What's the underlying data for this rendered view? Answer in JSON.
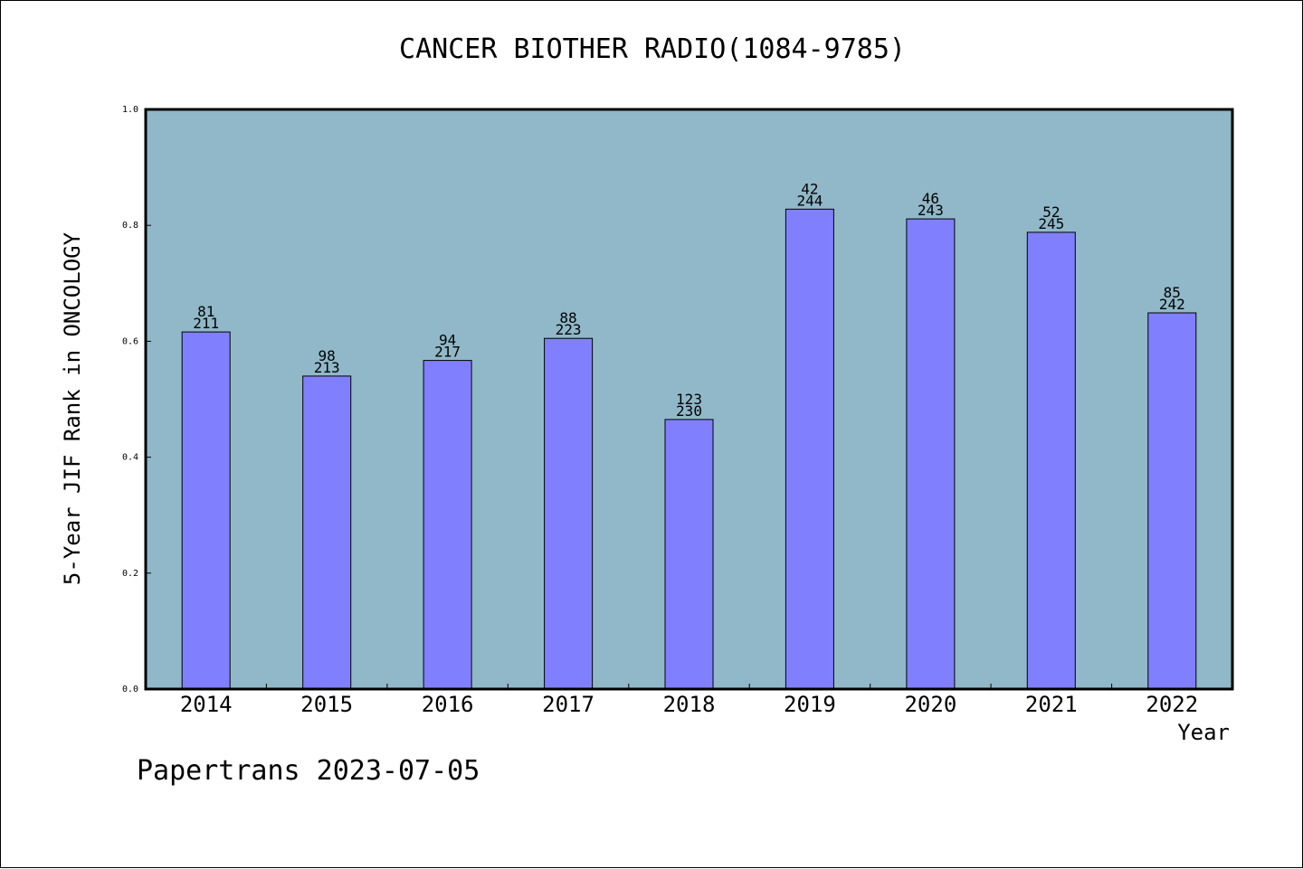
{
  "chart_data": {
    "type": "bar",
    "title": "CANCER BIOTHER RADIO(1084-9785)",
    "xlabel": "Year",
    "ylabel": "5-Year JIF Rank in ONCOLOGY",
    "ylim": [
      0,
      1.0
    ],
    "yticks": [
      "0.0",
      "0.2",
      "0.4",
      "0.6",
      "0.8",
      "1.0"
    ],
    "categories": [
      "2014",
      "2015",
      "2016",
      "2017",
      "2018",
      "2019",
      "2020",
      "2021",
      "2022"
    ],
    "values": [
      0.616,
      0.54,
      0.567,
      0.605,
      0.465,
      0.828,
      0.811,
      0.788,
      0.649
    ],
    "rank_labels": [
      "81",
      "98",
      "94",
      "88",
      "123",
      "42",
      "46",
      "52",
      "85"
    ],
    "total_labels": [
      "211",
      "213",
      "217",
      "223",
      "230",
      "244",
      "243",
      "245",
      "242"
    ],
    "grid": false,
    "colors": {
      "plot_background": "#90b8c8",
      "bar_fill": "#8080ff",
      "bar_stroke": "#000000"
    }
  },
  "footer": "Papertrans 2023-07-05"
}
